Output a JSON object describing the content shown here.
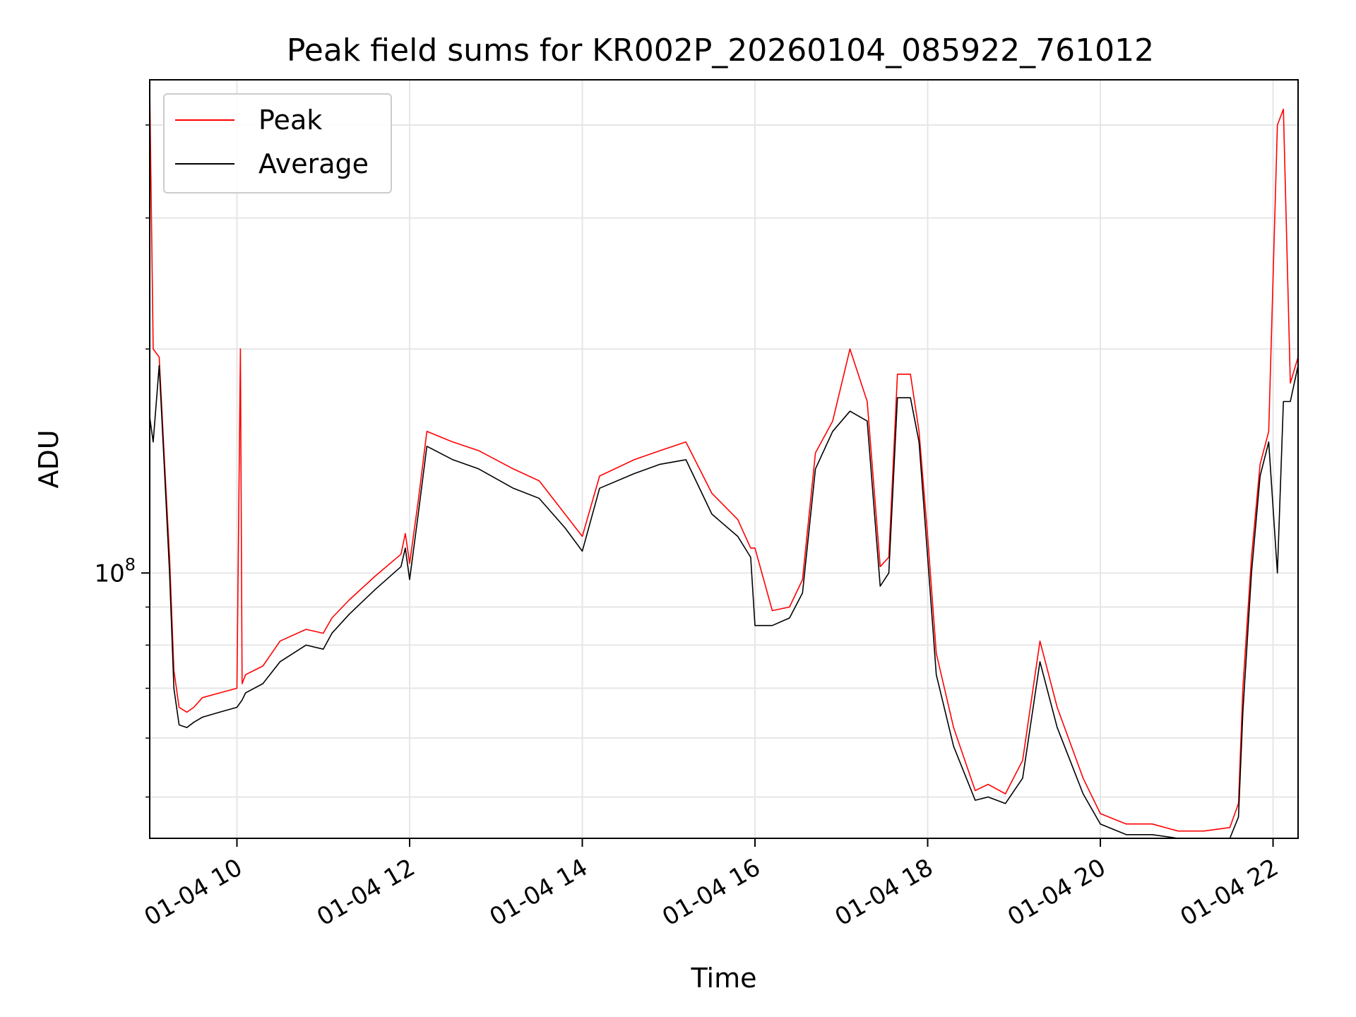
{
  "chart_data": {
    "type": "line",
    "title": "Peak field sums for KR002P_20260104_085922_761012",
    "xlabel": "Time",
    "ylabel": "ADU",
    "yscale": "log",
    "xlim": [
      8.99,
      22.29
    ],
    "ylim": [
      44000000.0,
      460000000.0
    ],
    "grid": true,
    "legend_position": "top-left",
    "x_unit": "hours since 01-04 00:00",
    "x_ticks": [
      {
        "value": 10,
        "label": "01-04 10"
      },
      {
        "value": 12,
        "label": "01-04 12"
      },
      {
        "value": 14,
        "label": "01-04 14"
      },
      {
        "value": 16,
        "label": "01-04 16"
      },
      {
        "value": 18,
        "label": "01-04 18"
      },
      {
        "value": 20,
        "label": "01-04 20"
      },
      {
        "value": 22,
        "label": "01-04 22"
      }
    ],
    "y_major_ticks": [
      {
        "value": 100000000.0,
        "base": "10",
        "exp": "8"
      }
    ],
    "y_minor_ticks": [
      50000000.0,
      60000000.0,
      70000000.0,
      80000000.0,
      90000000.0,
      200000000.0,
      300000000.0,
      400000000.0
    ],
    "series": [
      {
        "name": "Peak",
        "color": "#ff0000",
        "x": [
          8.99,
          9.03,
          9.1,
          9.16,
          9.22,
          9.27,
          9.33,
          9.42,
          9.5,
          9.6,
          9.8,
          10.0,
          10.04,
          10.06,
          10.1,
          10.3,
          10.5,
          10.8,
          11.0,
          11.1,
          11.3,
          11.6,
          11.9,
          11.95,
          12.0,
          12.1,
          12.2,
          12.5,
          12.8,
          13.2,
          13.5,
          13.8,
          14.0,
          14.2,
          14.6,
          14.9,
          15.2,
          15.5,
          15.8,
          15.95,
          16.0,
          16.2,
          16.4,
          16.55,
          16.7,
          16.9,
          17.1,
          17.3,
          17.45,
          17.55,
          17.65,
          17.8,
          17.9,
          18.0,
          18.1,
          18.3,
          18.55,
          18.7,
          18.9,
          19.1,
          19.3,
          19.5,
          19.8,
          20.0,
          20.3,
          20.6,
          20.9,
          21.2,
          21.5,
          21.6,
          21.65,
          21.75,
          21.85,
          21.95,
          22.05,
          22.12,
          22.2,
          22.29
        ],
        "values": [
          450000000.0,
          200000000.0,
          195000000.0,
          142000000.0,
          105000000.0,
          74000000.0,
          66000000.0,
          65000000.0,
          66000000.0,
          68000000.0,
          69000000.0,
          70000000.0,
          200000000.0,
          71000000.0,
          73000000.0,
          75000000.0,
          81000000.0,
          84000000.0,
          83000000.0,
          87000000.0,
          92000000.0,
          99000000.0,
          106000000.0,
          113000000.0,
          103000000.0,
          125000000.0,
          155000000.0,
          150000000.0,
          146000000.0,
          138000000.0,
          133000000.0,
          120000000.0,
          112000000.0,
          135000000.0,
          142000000.0,
          146000000.0,
          150000000.0,
          128000000.0,
          118000000.0,
          108000000.0,
          108000000.0,
          89000000.0,
          90000000.0,
          98000000.0,
          145000000.0,
          160000000.0,
          200000000.0,
          170000000.0,
          102000000.0,
          105000000.0,
          185000000.0,
          185000000.0,
          155000000.0,
          112000000.0,
          78000000.0,
          62000000.0,
          51000000.0,
          52000000.0,
          50500000.0,
          56000000.0,
          81000000.0,
          66000000.0,
          53000000.0,
          47500000.0,
          46000000.0,
          46000000.0,
          45000000.0,
          45000000.0,
          45500000.0,
          49000000.0,
          70000000.0,
          105000000.0,
          140000000.0,
          155000000.0,
          400000000.0,
          420000000.0,
          180000000.0,
          195000000.0
        ]
      },
      {
        "name": "Average",
        "color": "#000000",
        "x": [
          8.99,
          9.03,
          9.1,
          9.16,
          9.22,
          9.27,
          9.33,
          9.42,
          9.5,
          9.6,
          9.8,
          10.0,
          10.06,
          10.1,
          10.3,
          10.5,
          10.8,
          11.0,
          11.1,
          11.3,
          11.6,
          11.9,
          11.95,
          12.0,
          12.1,
          12.2,
          12.5,
          12.8,
          13.2,
          13.5,
          13.8,
          14.0,
          14.2,
          14.6,
          14.9,
          15.2,
          15.5,
          15.8,
          15.95,
          16.0,
          16.2,
          16.4,
          16.55,
          16.7,
          16.9,
          17.1,
          17.3,
          17.45,
          17.55,
          17.65,
          17.8,
          17.9,
          18.0,
          18.1,
          18.3,
          18.55,
          18.7,
          18.9,
          19.1,
          19.3,
          19.5,
          19.8,
          20.0,
          20.3,
          20.6,
          20.9,
          21.2,
          21.5,
          21.6,
          21.65,
          21.75,
          21.85,
          21.95,
          22.05,
          22.12,
          22.2,
          22.29
        ],
        "values": [
          162000000.0,
          150000000.0,
          190000000.0,
          138000000.0,
          100000000.0,
          70000000.0,
          62500000.0,
          62000000.0,
          63000000.0,
          64000000.0,
          65000000.0,
          66000000.0,
          67500000.0,
          69000000.0,
          71000000.0,
          76000000.0,
          80000000.0,
          79000000.0,
          83000000.0,
          88000000.0,
          95000000.0,
          102000000.0,
          108000000.0,
          98000000.0,
          120000000.0,
          148000000.0,
          142000000.0,
          138000000.0,
          130000000.0,
          126000000.0,
          115000000.0,
          107000000.0,
          130000000.0,
          136000000.0,
          140000000.0,
          142000000.0,
          120000000.0,
          112000000.0,
          105000000.0,
          85000000.0,
          85000000.0,
          87000000.0,
          94000000.0,
          138000000.0,
          155000000.0,
          165000000.0,
          160000000.0,
          96000000.0,
          100000000.0,
          172000000.0,
          172000000.0,
          150000000.0,
          105000000.0,
          73000000.0,
          58500000.0,
          49500000.0,
          50000000.0,
          49000000.0,
          53000000.0,
          76000000.0,
          62000000.0,
          50500000.0,
          46000000.0,
          44500000.0,
          44500000.0,
          44000000.0,
          44000000.0,
          44000000.0,
          47000000.0,
          65000000.0,
          100000000.0,
          135000000.0,
          150000000.0,
          100000000.0,
          170000000.0,
          170000000.0,
          190000000.0
        ]
      }
    ]
  }
}
